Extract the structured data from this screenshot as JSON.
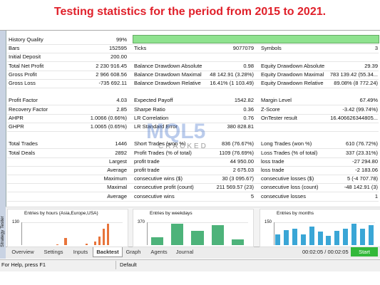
{
  "title": "Testing statistics for the period from 2015 to 2021.",
  "stats": {
    "sections": [
      [
        [
          "History Quality",
          "99%"
        ],
        [
          "Bars",
          "152595",
          "Ticks",
          "9077079",
          "Symbols",
          "3"
        ],
        [
          "Initial Deposit",
          "200.00"
        ],
        [
          "Total Net Profit",
          "2 230 916.45",
          "Balance Drawdown Absolute",
          "0.98",
          "Equity Drawdown Absolute",
          "29.39"
        ],
        [
          "Gross Profit",
          "2 966 608.56",
          "Balance Drawdown Maximal",
          "48 142.91 (3.28%)",
          "Equity Drawdown Maximal",
          "783 139.42 (55.34..."
        ],
        [
          "Gross Loss",
          "-735 692.11",
          "Balance Drawdown Relative",
          "16.41% (1 103.49)",
          "Equity Drawdown Relative",
          "89.08% (8 772.24)"
        ]
      ],
      [
        [
          "Profit Factor",
          "4.03",
          "Expected Payoff",
          "1542.82",
          "Margin Level",
          "67.49%"
        ],
        [
          "Recovery Factor",
          "2.85",
          "Sharpe Ratio",
          "0.36",
          "Z-Score",
          "-3.42 (99.74%)"
        ],
        [
          "AHPR",
          "1.0066 (0.66%)",
          "LR Correlation",
          "0.76",
          "OnTester result",
          "16.406626344805..."
        ],
        [
          "GHPR",
          "1.0065 (0.65%)",
          "LR Standard Error",
          "380 828.81"
        ]
      ],
      [
        [
          "Total Trades",
          "1446",
          "Short Trades (won %)",
          "836 (76.67%)",
          "Long Trades (won %)",
          "610 (76.72%)"
        ],
        [
          "Total Deals",
          "2892",
          "Profit Trades (% of total)",
          "1109 (76.69%)",
          "Loss Trades (% of total)",
          "337 (23.31%)"
        ],
        [
          "Largest",
          "profit trade",
          "44 950.00",
          "loss trade",
          "-27 294.80"
        ],
        [
          "Average",
          "profit trade",
          "2 675.03",
          "loss trade",
          "-2 183.06"
        ],
        [
          "Maximum",
          "consecutive wins ($)",
          "30 (3 095.67)",
          "consecutive losses ($)",
          "5 (-4 707.78)"
        ],
        [
          "Maximal",
          "consecutive profit (count)",
          "211 569.57 (23)",
          "consecutive loss (count)",
          "-48 142.91 (3)"
        ],
        [
          "Average",
          "consecutive wins",
          "5",
          "consecutive losses",
          "1"
        ]
      ]
    ]
  },
  "charts": [
    {
      "title": "Entries by hours (Asia,Europe,USA)",
      "ylim": [
        0,
        130
      ],
      "yticks": [
        130
      ],
      "color": "#e8743b",
      "values": [
        0,
        0,
        0,
        0,
        0,
        0,
        0,
        0,
        5,
        0,
        40,
        0,
        0,
        0,
        0,
        10,
        0,
        20,
        50,
        95,
        120,
        0,
        0,
        0
      ]
    },
    {
      "title": "Entries by weekdays",
      "ylim": [
        0,
        370
      ],
      "yticks": [
        370
      ],
      "color": "#4db37a",
      "values": [
        130,
        350,
        230,
        320,
        90
      ]
    },
    {
      "title": "Entries by months",
      "ylim": [
        0,
        150
      ],
      "yticks": [
        150
      ],
      "color": "#3aa6d6",
      "values": [
        70,
        100,
        110,
        70,
        120,
        90,
        60,
        95,
        110,
        140,
        110,
        130
      ]
    }
  ],
  "watermark": [
    "MQL5",
    "CRACKED"
  ],
  "side_label": "Strategy Tester",
  "tabs": [
    "Overview",
    "Settings",
    "Inputs",
    "Backtest",
    "Graph",
    "Agents",
    "Journal"
  ],
  "active_tab": 3,
  "timer": "00:02:05 / 00:02:05",
  "start_button": "Start",
  "status": [
    "For Help, press F1",
    "Default"
  ]
}
